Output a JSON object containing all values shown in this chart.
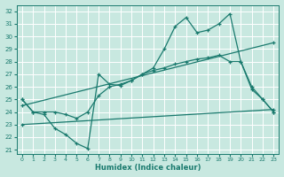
{
  "xlabel": "Humidex (Indice chaleur)",
  "bg_color": "#c8e8e0",
  "line_color": "#1a7a6e",
  "grid_color": "#b8d8d0",
  "xlim": [
    -0.5,
    23.5
  ],
  "ylim": [
    20.7,
    32.5
  ],
  "yticks": [
    21,
    22,
    23,
    24,
    25,
    26,
    27,
    28,
    29,
    30,
    31,
    32
  ],
  "xticks": [
    0,
    1,
    2,
    3,
    4,
    5,
    6,
    7,
    8,
    9,
    10,
    11,
    12,
    13,
    14,
    15,
    16,
    17,
    18,
    19,
    20,
    21,
    22,
    23
  ],
  "series": [
    {
      "x": [
        0,
        1,
        2,
        3,
        4,
        5,
        6,
        7,
        8,
        9,
        10,
        11,
        12,
        13,
        14,
        15,
        16,
        17,
        18,
        19,
        20,
        21,
        22,
        23
      ],
      "y": [
        25.0,
        24.0,
        23.8,
        22.7,
        22.2,
        21.5,
        21.1,
        27.0,
        26.2,
        26.1,
        26.5,
        27.0,
        27.5,
        29.0,
        30.8,
        31.5,
        30.3,
        30.5,
        31.0,
        31.8,
        28.0,
        25.8,
        25.0,
        24.0
      ]
    },
    {
      "x": [
        0,
        1,
        2,
        3,
        4,
        5,
        6,
        7,
        8,
        9,
        10,
        11,
        12,
        13,
        14,
        15,
        16,
        17,
        18,
        19,
        20,
        21,
        22,
        23
      ],
      "y": [
        25.0,
        24.0,
        24.0,
        24.0,
        23.8,
        23.5,
        24.0,
        25.3,
        26.0,
        26.2,
        26.5,
        27.0,
        27.3,
        27.5,
        27.8,
        28.0,
        28.2,
        28.3,
        28.5,
        28.0,
        28.0,
        26.0,
        25.0,
        24.0
      ]
    },
    {
      "x": [
        0,
        23
      ],
      "y": [
        24.5,
        29.5
      ]
    },
    {
      "x": [
        0,
        23
      ],
      "y": [
        23.0,
        24.2
      ]
    }
  ]
}
